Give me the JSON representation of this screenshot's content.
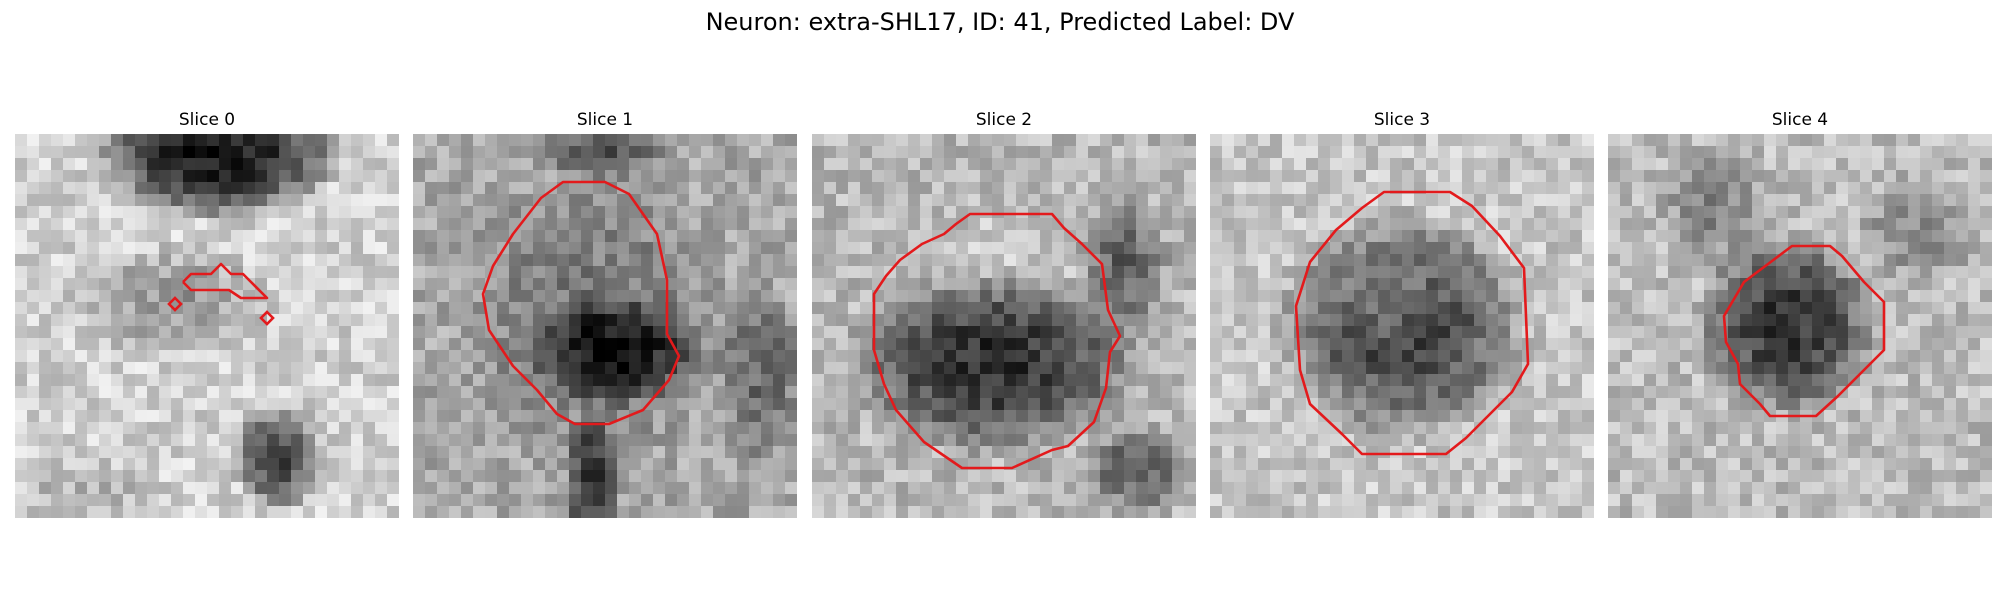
{
  "figure": {
    "title": "Neuron: extra-SHL17, ID: 41, Predicted Label: DV",
    "contour_color": "#e31a1c",
    "colormap": "gray",
    "panels": [
      {
        "title": "Slice 0",
        "contour": "small-fragment"
      },
      {
        "title": "Slice 1",
        "contour": "large-round"
      },
      {
        "title": "Slice 2",
        "contour": "large-round"
      },
      {
        "title": "Slice 3",
        "contour": "octagon"
      },
      {
        "title": "Slice 4",
        "contour": "small-octagon"
      }
    ]
  }
}
